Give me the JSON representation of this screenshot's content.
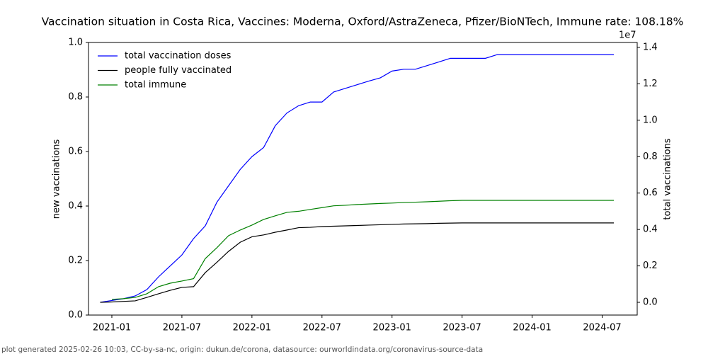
{
  "chart_data": {
    "type": "line",
    "title": "Vaccination situation in Costa Rica, Vaccines: Moderna, Oxford/AstraZeneca, Pfizer/BioNTech, Immune rate: 108.18%",
    "ylabel": "new vaccinations",
    "y2label": "total vaccinations",
    "y2_offset_label": "1e7",
    "footer": "plot generated 2025-02-26 10:03, CC-by-sa-nc, origin: dukun.de/corona, datasource: ourworldindata.org/coronavirus-source-data",
    "legend": "upper left",
    "x": [
      "2020-12",
      "2021-01",
      "2021-02",
      "2021-03",
      "2021-04",
      "2021-05",
      "2021-06",
      "2021-07",
      "2021-08",
      "2021-09",
      "2021-10",
      "2021-11",
      "2021-12",
      "2022-01",
      "2022-02",
      "2022-03",
      "2022-04",
      "2022-05",
      "2022-06",
      "2022-07",
      "2022-08",
      "2022-09",
      "2022-10",
      "2022-11",
      "2022-12",
      "2023-01",
      "2023-02",
      "2023-03",
      "2023-04",
      "2023-05",
      "2023-06",
      "2023-07",
      "2023-08",
      "2023-09",
      "2023-10",
      "2023-11",
      "2023-12",
      "2024-01",
      "2024-02",
      "2024-03",
      "2024-04",
      "2024-05",
      "2024-06",
      "2024-07",
      "2024-08"
    ],
    "xlim": [
      "2020-11",
      "2024-10"
    ],
    "xticks": [
      "2021-01",
      "2021-07",
      "2022-01",
      "2022-07",
      "2023-01",
      "2023-07",
      "2024-01",
      "2024-07"
    ],
    "ylim": [
      0,
      1
    ],
    "yticks": [
      {
        "value": 0,
        "label": "0.0"
      },
      {
        "value": 0.2,
        "label": "0.2"
      },
      {
        "value": 0.4,
        "label": "0.4"
      },
      {
        "value": 0.6,
        "label": "0.6"
      },
      {
        "value": 0.8,
        "label": "0.8"
      },
      {
        "value": 1,
        "label": "1.0"
      }
    ],
    "y2lim": [
      -0.07,
      1.427
    ],
    "y2ticks": [
      {
        "value": 0,
        "label": "0.0"
      },
      {
        "value": 0.2,
        "label": "0.2"
      },
      {
        "value": 0.4,
        "label": "0.4"
      },
      {
        "value": 0.6,
        "label": "0.6"
      },
      {
        "value": 0.8,
        "label": "0.8"
      },
      {
        "value": 1,
        "label": "1.0"
      },
      {
        "value": 1.2,
        "label": "1.2"
      },
      {
        "value": 1.4,
        "label": "1.4"
      }
    ],
    "series": [
      {
        "name": "total vaccination doses",
        "color": "#0000ff",
        "axis": "y2",
        "values": [
          0,
          0.01,
          0.02,
          0.035,
          0.07,
          0.14,
          0.2,
          0.26,
          0.35,
          0.42,
          0.55,
          0.64,
          0.73,
          0.8,
          0.85,
          0.97,
          1.04,
          1.08,
          1.1,
          1.1,
          1.155,
          1.175,
          1.195,
          1.215,
          1.233,
          1.27,
          1.28,
          1.28,
          1.3,
          1.32,
          1.34,
          1.34,
          1.34,
          1.34,
          1.36,
          1.36,
          1.36,
          1.36,
          1.36,
          1.36,
          1.36,
          1.36,
          1.36,
          1.36,
          1.36
        ]
      },
      {
        "name": "people fully vaccinated",
        "color": "#000000",
        "axis": "y2",
        "values": [
          0,
          0.002,
          0.005,
          0.008,
          0.027,
          0.047,
          0.066,
          0.082,
          0.086,
          0.163,
          0.22,
          0.28,
          0.33,
          0.36,
          0.37,
          0.385,
          0.397,
          0.41,
          0.412,
          0.416,
          0.418,
          0.42,
          0.422,
          0.424,
          0.426,
          0.428,
          0.43,
          0.431,
          0.432,
          0.434,
          0.435,
          0.436,
          0.436,
          0.436,
          0.436,
          0.436,
          0.436,
          0.436,
          0.436,
          0.436,
          0.436,
          0.436,
          0.436,
          0.436,
          0.436
        ]
      },
      {
        "name": "total immune",
        "color": "#008000",
        "axis": "y2",
        "values": [
          null,
          0.016,
          0.02,
          0.027,
          0.047,
          0.086,
          0.105,
          0.117,
          0.13,
          0.24,
          0.3,
          0.366,
          0.397,
          0.424,
          0.455,
          0.475,
          0.494,
          0.5,
          0.51,
          0.52,
          0.53,
          0.533,
          0.537,
          0.54,
          0.543,
          0.545,
          0.548,
          0.55,
          0.552,
          0.555,
          0.558,
          0.56,
          0.56,
          0.56,
          0.56,
          0.56,
          0.56,
          0.56,
          0.56,
          0.56,
          0.56,
          0.56,
          0.56,
          0.56,
          0.56
        ]
      }
    ]
  }
}
